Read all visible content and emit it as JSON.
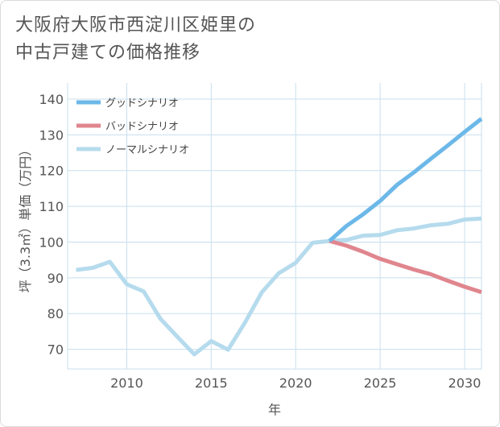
{
  "chart_data": {
    "type": "line",
    "title_lines": [
      "大阪府大阪市西淀川区姫里の",
      "中古戸建ての価格推移"
    ],
    "xlabel": "年",
    "ylabel": "坪（3.3㎡）単価（万円）",
    "xlim": [
      2006.5,
      2031
    ],
    "ylim": [
      64.5,
      144.5
    ],
    "x_ticks": [
      2010,
      2015,
      2020,
      2025,
      2030
    ],
    "y_ticks": [
      70,
      80,
      90,
      100,
      110,
      120,
      130,
      140
    ],
    "x_tick_labels": [
      "2010",
      "2015",
      "2020",
      "2025",
      "2030"
    ],
    "y_tick_labels": [
      "70",
      "80",
      "90",
      "100",
      "110",
      "120",
      "130",
      "140"
    ],
    "legend_position": "top-left",
    "series": [
      {
        "name": "グッドシナリオ",
        "color": "#6cb8e8",
        "x": [
          2022,
          2023,
          2024,
          2025,
          2026,
          2027,
          2028,
          2029,
          2030,
          2031
        ],
        "values": [
          100.3,
          104.5,
          107.8,
          111.5,
          116.0,
          119.5,
          123.3,
          127.0,
          130.8,
          134.5
        ]
      },
      {
        "name": "バッドシナリオ",
        "color": "#e0868e",
        "x": [
          2022,
          2023,
          2024,
          2025,
          2026,
          2027,
          2028,
          2029,
          2030,
          2031
        ],
        "values": [
          100.3,
          99.0,
          97.3,
          95.3,
          93.8,
          92.3,
          91.0,
          89.2,
          87.5,
          86.0
        ]
      },
      {
        "name": "ノーマルシナリオ",
        "color": "#b5dbed",
        "x": [
          2007,
          2008,
          2009,
          2010,
          2011,
          2012,
          2013,
          2014,
          2015,
          2016,
          2017,
          2018,
          2019,
          2020,
          2021,
          2022,
          2023,
          2024,
          2025,
          2026,
          2027,
          2028,
          2029,
          2030,
          2031
        ],
        "values": [
          92.2,
          92.8,
          94.5,
          88.2,
          86.2,
          78.5,
          73.5,
          68.6,
          72.3,
          69.9,
          77.5,
          86.0,
          91.3,
          94.2,
          99.8,
          100.3,
          100.6,
          101.8,
          102.0,
          103.3,
          103.8,
          104.7,
          105.1,
          106.3,
          106.6
        ]
      }
    ]
  }
}
